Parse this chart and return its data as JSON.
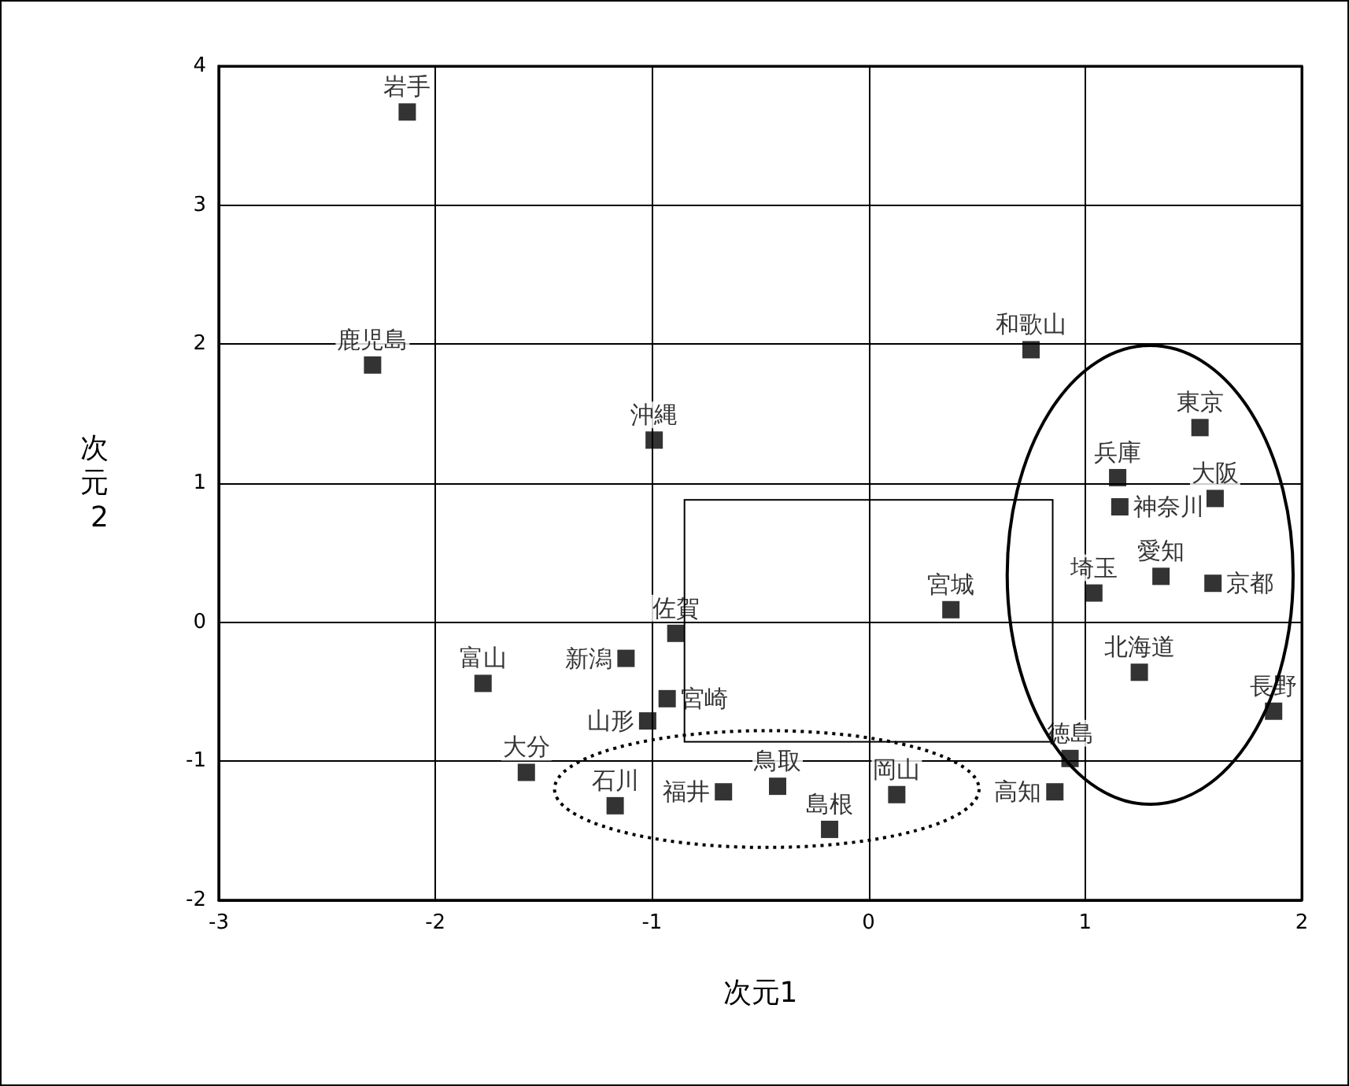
{
  "chart_data": {
    "type": "scatter",
    "xlabel": "次元1",
    "ylabel": "次元2",
    "xlim": [
      -3,
      2
    ],
    "ylim": [
      -2,
      4
    ],
    "xticks": [
      -3,
      -2,
      -1,
      0,
      1,
      2
    ],
    "yticks": [
      -2,
      -1,
      0,
      1,
      2,
      3,
      4
    ],
    "grid": true,
    "marker": "square",
    "legend": false,
    "series": [
      {
        "name": "岩手",
        "color": "#000000",
        "x": [
          -2.13
        ],
        "values": [
          3.67
        ]
      },
      {
        "name": "鹿児島",
        "color": "#000000",
        "x": [
          -2.29
        ],
        "values": [
          1.85
        ]
      },
      {
        "name": "和歌山",
        "color": "#000000",
        "x": [
          0.75
        ],
        "values": [
          1.96
        ]
      },
      {
        "name": "沖縄",
        "color": "#000000",
        "x": [
          -0.99
        ],
        "values": [
          1.31
        ]
      },
      {
        "name": "東京",
        "color": "#000000",
        "x": [
          1.53
        ],
        "values": [
          1.4
        ]
      },
      {
        "name": "兵庫",
        "color": "#000000",
        "x": [
          1.15
        ],
        "values": [
          1.04
        ]
      },
      {
        "name": "神奈川",
        "color": "#000000",
        "x": [
          1.16
        ],
        "values": [
          0.83
        ]
      },
      {
        "name": "大阪",
        "color": "#000000",
        "x": [
          1.6
        ],
        "values": [
          0.89
        ]
      },
      {
        "name": "埼玉",
        "color": "#000000",
        "x": [
          1.04
        ],
        "values": [
          0.21
        ]
      },
      {
        "name": "愛知",
        "color": "#000000",
        "x": [
          1.35
        ],
        "values": [
          0.33
        ]
      },
      {
        "name": "京都",
        "color": "#000000",
        "x": [
          1.59
        ],
        "values": [
          0.28
        ]
      },
      {
        "name": "宮城",
        "color": "#000000",
        "x": [
          0.38
        ],
        "values": [
          0.09
        ]
      },
      {
        "name": "北海道",
        "color": "#000000",
        "x": [
          1.25
        ],
        "values": [
          -0.36
        ]
      },
      {
        "name": "長野",
        "color": "#000000",
        "x": [
          1.87
        ],
        "values": [
          -0.64
        ]
      },
      {
        "name": "佐賀",
        "color": "#000000",
        "x": [
          -0.89
        ],
        "values": [
          -0.08
        ]
      },
      {
        "name": "新潟",
        "color": "#000000",
        "x": [
          -1.12
        ],
        "values": [
          -0.26
        ]
      },
      {
        "name": "富山",
        "color": "#000000",
        "x": [
          -1.78
        ],
        "values": [
          -0.44
        ]
      },
      {
        "name": "宮崎",
        "color": "#000000",
        "x": [
          -0.93
        ],
        "values": [
          -0.55
        ]
      },
      {
        "name": "山形",
        "color": "#000000",
        "x": [
          -1.02
        ],
        "values": [
          -0.71
        ]
      },
      {
        "name": "大分",
        "color": "#000000",
        "x": [
          -1.58
        ],
        "values": [
          -1.08
        ]
      },
      {
        "name": "石川",
        "color": "#000000",
        "x": [
          -1.17
        ],
        "values": [
          -1.32
        ]
      },
      {
        "name": "福井",
        "color": "#000000",
        "x": [
          -0.67
        ],
        "values": [
          -1.22
        ]
      },
      {
        "name": "鳥取",
        "color": "#000000",
        "x": [
          -0.42
        ],
        "values": [
          -1.18
        ]
      },
      {
        "name": "島根",
        "color": "#000000",
        "x": [
          -0.18
        ],
        "values": [
          -1.49
        ]
      },
      {
        "name": "岡山",
        "color": "#000000",
        "x": [
          0.13
        ],
        "values": [
          -1.24
        ]
      },
      {
        "name": "徳島",
        "color": "#000000",
        "x": [
          0.93
        ],
        "values": [
          -0.98
        ]
      },
      {
        "name": "高知",
        "color": "#000000",
        "x": [
          0.86
        ],
        "values": [
          -1.22
        ]
      }
    ]
  }
}
